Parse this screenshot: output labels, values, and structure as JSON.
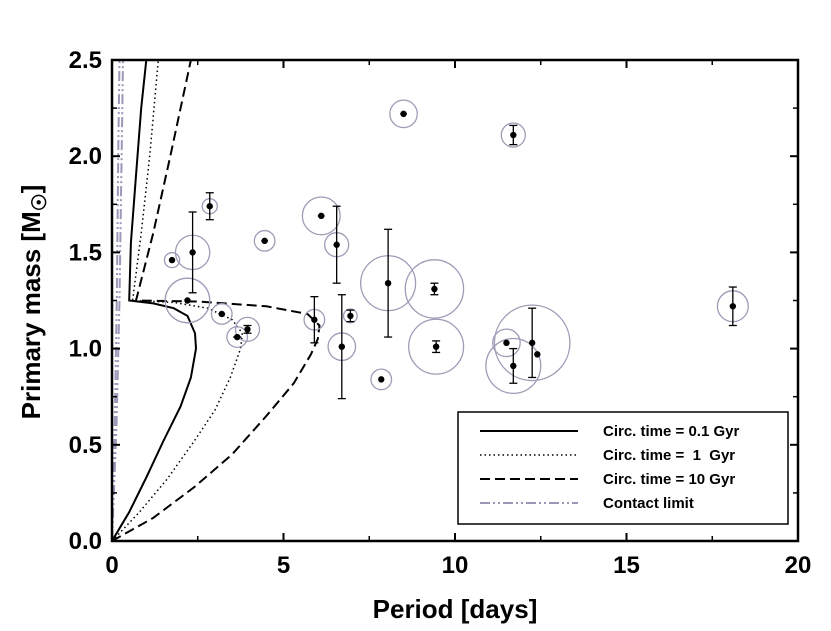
{
  "chart_data": {
    "type": "scatter",
    "title": "",
    "xlabel": "Period  [days]",
    "ylabel_main": "Primary mass  [M",
    "ylabel_symbol": "☉",
    "ylabel_close": "]",
    "xlim": [
      0,
      20
    ],
    "ylim": [
      0,
      2.5
    ],
    "x_ticks": [
      0,
      5,
      10,
      15,
      20
    ],
    "x_tick_labels": [
      "0",
      "5",
      "10",
      "15",
      "20"
    ],
    "y_ticks": [
      0,
      0.5,
      1.0,
      1.5,
      2.0,
      2.5
    ],
    "y_tick_labels": [
      "0.0",
      "0.5",
      "1.0",
      "1.5",
      "2.0",
      "2.5"
    ],
    "grid": false,
    "legend_position": "bottom-right",
    "legend": [
      {
        "label": "Circ. time = 0.1 Gyr",
        "style": "solid",
        "color": "#000000"
      },
      {
        "label": "Circ. time =  1  Gyr",
        "style": "dotted",
        "color": "#000000"
      },
      {
        "label": "Circ. time = 10 Gyr",
        "style": "dashed",
        "color": "#000000"
      },
      {
        "label": "Contact limit",
        "style": "dashdotdot",
        "color": "#9a98b8"
      }
    ],
    "curves": [
      {
        "name": "Circ. time = 0.1 Gyr",
        "style": "solid",
        "points": [
          [
            0.0,
            0.0
          ],
          [
            0.5,
            0.15
          ],
          [
            1.0,
            0.33
          ],
          [
            1.5,
            0.52
          ],
          [
            2.0,
            0.7
          ],
          [
            2.3,
            0.85
          ],
          [
            2.45,
            1.0
          ],
          [
            2.42,
            1.08
          ],
          [
            2.2,
            1.17
          ],
          [
            1.8,
            1.21
          ],
          [
            1.2,
            1.235
          ],
          [
            0.5,
            1.25
          ],
          [
            0.55,
            1.55
          ],
          [
            0.7,
            1.9
          ],
          [
            0.85,
            2.25
          ],
          [
            1.0,
            2.5
          ]
        ]
      },
      {
        "name": "Circ. time =  1  Gyr",
        "style": "dotted",
        "points": [
          [
            0.0,
            0.0
          ],
          [
            0.8,
            0.15
          ],
          [
            1.6,
            0.32
          ],
          [
            2.4,
            0.52
          ],
          [
            3.0,
            0.68
          ],
          [
            3.45,
            0.85
          ],
          [
            3.75,
            1.0
          ],
          [
            3.8,
            1.08
          ],
          [
            3.5,
            1.15
          ],
          [
            2.8,
            1.21
          ],
          [
            1.8,
            1.24
          ],
          [
            0.6,
            1.25
          ],
          [
            0.85,
            1.6
          ],
          [
            1.1,
            2.0
          ],
          [
            1.35,
            2.5
          ]
        ]
      },
      {
        "name": "Circ. time = 10 Gyr",
        "style": "dashed",
        "points": [
          [
            0.0,
            0.0
          ],
          [
            1.2,
            0.12
          ],
          [
            2.4,
            0.28
          ],
          [
            3.5,
            0.45
          ],
          [
            4.5,
            0.65
          ],
          [
            5.3,
            0.82
          ],
          [
            5.8,
            0.97
          ],
          [
            6.0,
            1.05
          ],
          [
            6.05,
            1.12
          ],
          [
            5.7,
            1.18
          ],
          [
            4.5,
            1.22
          ],
          [
            2.5,
            1.245
          ],
          [
            0.7,
            1.25
          ],
          [
            1.2,
            1.6
          ],
          [
            1.7,
            2.0
          ],
          [
            2.3,
            2.5
          ]
        ]
      },
      {
        "name": "Contact limit",
        "style": "dashdotdot",
        "points": [
          [
            0.0,
            0.0
          ],
          [
            0.13,
            0.6
          ],
          [
            0.22,
            1.25
          ],
          [
            0.28,
            2.0
          ],
          [
            0.32,
            2.5
          ]
        ]
      },
      {
        "name": "Contact limit inner",
        "style": "dashdotdot",
        "points": [
          [
            0.0,
            0.0
          ],
          [
            0.08,
            0.6
          ],
          [
            0.14,
            1.25
          ],
          [
            0.18,
            2.0
          ],
          [
            0.22,
            2.5
          ]
        ]
      }
    ],
    "points": [
      {
        "x": 1.75,
        "y": 1.46,
        "yerr": 0.0,
        "xerr": 0.0,
        "circle_r": 0.22
      },
      {
        "x": 2.35,
        "y": 1.5,
        "yerr": 0.21,
        "xerr": 0.0,
        "circle_r": 0.5
      },
      {
        "x": 2.85,
        "y": 1.74,
        "yerr": 0.07,
        "xerr": 0.0,
        "circle_r": 0.22
      },
      {
        "x": 2.2,
        "y": 1.25,
        "yerr": 0.0,
        "xerr": 0.08,
        "circle_r": 0.65
      },
      {
        "x": 3.2,
        "y": 1.18,
        "yerr": 0.0,
        "xerr": 0.1,
        "circle_r": 0.3
      },
      {
        "x": 3.65,
        "y": 1.06,
        "yerr": 0.0,
        "xerr": 0.12,
        "circle_r": 0.3
      },
      {
        "x": 3.95,
        "y": 1.1,
        "yerr": 0.02,
        "xerr": 0.0,
        "circle_r": 0.35
      },
      {
        "x": 4.45,
        "y": 1.56,
        "yerr": 0.0,
        "xerr": 0.1,
        "circle_r": 0.3
      },
      {
        "x": 5.9,
        "y": 1.15,
        "yerr": 0.12,
        "xerr": 0.0,
        "circle_r": 0.3
      },
      {
        "x": 6.1,
        "y": 1.69,
        "yerr": 0.0,
        "xerr": 0.1,
        "circle_r": 0.55
      },
      {
        "x": 6.55,
        "y": 1.54,
        "yerr": 0.2,
        "xerr": 0.0,
        "circle_r": 0.35
      },
      {
        "x": 6.7,
        "y": 1.01,
        "yerr": 0.27,
        "xerr": 0.0,
        "circle_r": 0.4
      },
      {
        "x": 6.95,
        "y": 1.17,
        "yerr": 0.03,
        "xerr": 0.0,
        "circle_r": 0.2
      },
      {
        "x": 7.85,
        "y": 0.84,
        "yerr": 0.0,
        "xerr": 0.0,
        "circle_r": 0.3
      },
      {
        "x": 8.05,
        "y": 1.34,
        "yerr": 0.28,
        "xerr": 0.0,
        "circle_r": 0.8
      },
      {
        "x": 8.5,
        "y": 2.22,
        "yerr": 0.0,
        "xerr": 0.1,
        "circle_r": 0.4
      },
      {
        "x": 9.4,
        "y": 1.31,
        "yerr": 0.03,
        "xerr": 0.0,
        "circle_r": 0.85
      },
      {
        "x": 9.45,
        "y": 1.01,
        "yerr": 0.03,
        "xerr": 0.0,
        "circle_r": 0.8
      },
      {
        "x": 11.5,
        "y": 1.03,
        "yerr": 0.0,
        "xerr": 0.0,
        "circle_r": 0.4
      },
      {
        "x": 11.7,
        "y": 2.11,
        "yerr": 0.05,
        "xerr": 0.0,
        "circle_r": 0.35
      },
      {
        "x": 11.7,
        "y": 0.91,
        "yerr": 0.09,
        "xerr": 0.0,
        "circle_r": 0.8
      },
      {
        "x": 12.25,
        "y": 1.03,
        "yerr": 0.18,
        "xerr": 0.0,
        "circle_r": 1.1
      },
      {
        "x": 12.4,
        "y": 0.97,
        "yerr": 0.0,
        "xerr": 0.0,
        "circle_r": 0.0
      },
      {
        "x": 18.1,
        "y": 1.22,
        "yerr": 0.1,
        "xerr": 0.0,
        "circle_r": 0.45
      }
    ],
    "colors": {
      "axis": "#000000",
      "curve": "#000000",
      "contact": "#9a98b8",
      "circle": "#9e9cb6",
      "point": "#000000"
    }
  }
}
